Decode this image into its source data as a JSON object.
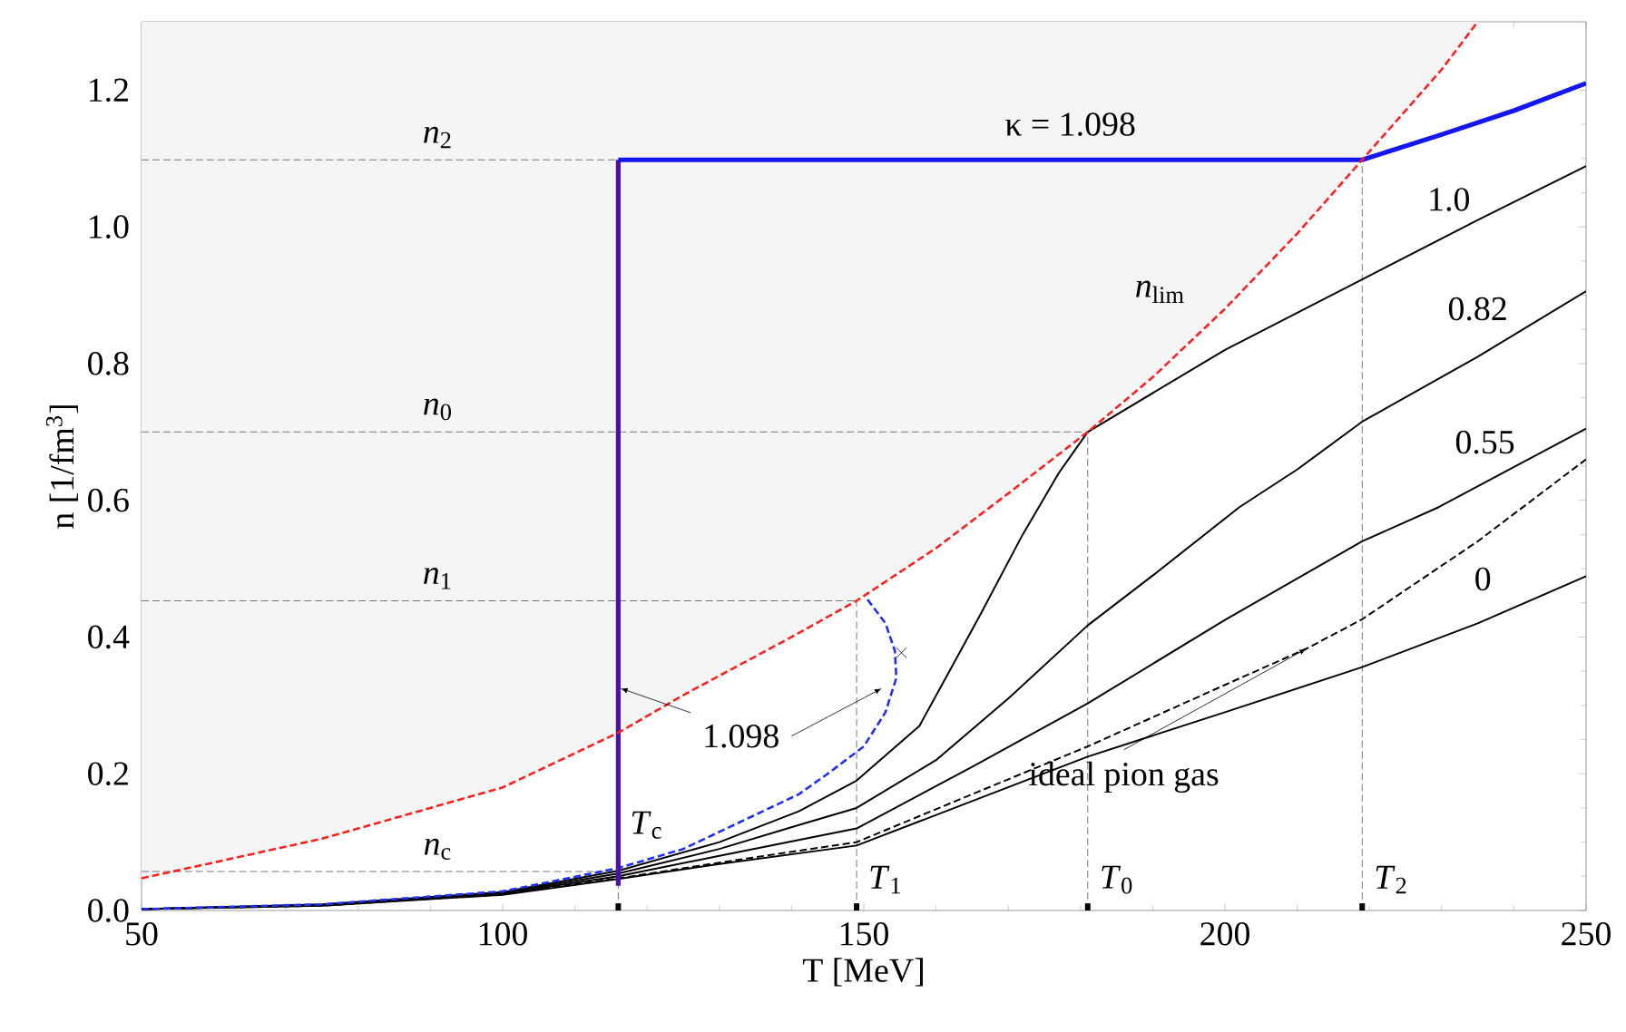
{
  "chart_data": {
    "type": "line",
    "xlabel": "T  [MeV]",
    "ylabel": "n  [1/fm$^{3}$]",
    "xlim": [
      50,
      250
    ],
    "ylim": [
      0,
      1.3
    ],
    "xticks": [
      50,
      100,
      150,
      200,
      250
    ],
    "yticks": [
      {
        "value": 0,
        "label": "0.0"
      },
      {
        "value": 0.2,
        "label": "0.2"
      },
      {
        "value": 0.4,
        "label": "0.4"
      },
      {
        "value": 0.6,
        "label": "0.6"
      },
      {
        "value": 0.8,
        "label": "0.8"
      },
      {
        "value": 1.0,
        "label": "1.0"
      },
      {
        "value": 1.2,
        "label": "1.2"
      }
    ],
    "series": [
      {
        "name": "*n*$_{lim}$",
        "color": "#ff2020",
        "line_style": "dashed",
        "x": [
          50,
          75,
          100,
          116,
          125,
          140,
          149,
          160,
          170,
          181,
          190,
          200,
          210,
          219,
          230,
          235
        ],
        "values": [
          0.047,
          0.105,
          0.18,
          0.26,
          0.315,
          0.4,
          0.453,
          0.53,
          0.61,
          0.7,
          0.78,
          0.88,
          0.99,
          1.098,
          1.23,
          1.3
        ],
        "lower": [
          0.047,
          0.105,
          0.18,
          0.26,
          0.315,
          0.4,
          0.453,
          0.53,
          0.61,
          0.7,
          0.78,
          0.88,
          0.99,
          1.098,
          1.23,
          1.3
        ],
        "upper": [
          1.3,
          1.3,
          1.3,
          1.3,
          1.3,
          1.3,
          1.3,
          1.3,
          1.3,
          1.3,
          1.3,
          1.3,
          1.3,
          1.3,
          1.3,
          1.3
        ]
      },
      {
        "name": "κ = 1.098",
        "color": "#1515f0",
        "line_style": "solid",
        "x": [
          116,
          219,
          230,
          240,
          250
        ],
        "values": [
          1.098,
          1.098,
          1.135,
          1.17,
          1.21
        ]
      },
      {
        "color": "#4b10a8",
        "line_style": "solid",
        "x": [
          116,
          116
        ],
        "values": [
          0.036,
          1.098
        ]
      },
      {
        "color": "#2030f0",
        "line_style": "dashed",
        "x": [
          50,
          75,
          100,
          116,
          125,
          135,
          141,
          145,
          150,
          153,
          154.5,
          154.3,
          153,
          150.5
        ],
        "values": [
          0.002,
          0.009,
          0.028,
          0.062,
          0.09,
          0.14,
          0.17,
          0.2,
          0.24,
          0.29,
          0.34,
          0.38,
          0.42,
          0.455
        ]
      },
      {
        "name": "1.0",
        "color": "#000000",
        "line_style": "solid",
        "x": [
          50,
          75,
          100,
          116,
          130,
          141,
          149,
          157.7,
          166,
          172,
          177,
          181,
          200,
          219,
          235,
          250
        ],
        "values": [
          0.002,
          0.009,
          0.027,
          0.058,
          0.1,
          0.145,
          0.19,
          0.27,
          0.43,
          0.55,
          0.64,
          0.7,
          0.82,
          0.923,
          1.01,
          1.089
        ]
      },
      {
        "name": "0.82",
        "color": "#000000",
        "line_style": "solid",
        "x": [
          50,
          75,
          100,
          116,
          130,
          141,
          149,
          160,
          170,
          181,
          190,
          202,
          210,
          219,
          235,
          250
        ],
        "values": [
          0.002,
          0.008,
          0.026,
          0.054,
          0.09,
          0.125,
          0.15,
          0.22,
          0.31,
          0.417,
          0.49,
          0.59,
          0.645,
          0.715,
          0.81,
          0.906
        ]
      },
      {
        "name": "0.55",
        "color": "#000000",
        "line_style": "solid",
        "x": [
          50,
          75,
          100,
          116,
          130,
          149,
          165,
          181,
          200,
          219,
          229.6,
          250
        ],
        "values": [
          0.002,
          0.008,
          0.025,
          0.05,
          0.08,
          0.12,
          0.21,
          0.303,
          0.425,
          0.54,
          0.59,
          0.705
        ]
      },
      {
        "name": "ideal pion gas",
        "color": "#000000",
        "line_style": "dashed",
        "x": [
          50,
          75,
          100,
          116,
          130,
          149,
          165,
          181,
          200,
          211.3,
          219,
          235,
          250
        ],
        "values": [
          0.002,
          0.007,
          0.024,
          0.047,
          0.07,
          0.1,
          0.17,
          0.24,
          0.33,
          0.383,
          0.426,
          0.54,
          0.66
        ]
      },
      {
        "name": "0",
        "color": "#000000",
        "line_style": "solid",
        "x": [
          50,
          75,
          100,
          116,
          130,
          149,
          165,
          181,
          200,
          219,
          235,
          250
        ],
        "values": [
          0.002,
          0.007,
          0.023,
          0.046,
          0.068,
          0.095,
          0.16,
          0.225,
          0.29,
          0.356,
          0.42,
          0.489
        ]
      },
      {
        "type": "scatter",
        "marker": "cross",
        "color": "#000000",
        "x": [
          155.2
        ],
        "values": [
          0.377
        ]
      }
    ],
    "ref_lines": [
      {
        "axis": "y",
        "value": 0.057,
        "label": "*n*$_{c}$",
        "color": "#555555",
        "line_style": "dashed"
      },
      {
        "axis": "y",
        "value": 0.453,
        "label": "*n*$_{1}$",
        "color": "#555555",
        "line_style": "dashed"
      },
      {
        "axis": "y",
        "value": 0.7,
        "label": "*n*$_{0}$",
        "color": "#555555",
        "line_style": "dashed"
      },
      {
        "axis": "y",
        "value": 1.098,
        "label": "*n*$_{2}$",
        "color": "#555555",
        "line_style": "dashed"
      },
      {
        "axis": "x",
        "value": 116,
        "label": "*T*$_{c}$",
        "color": "#555555",
        "line_style": "dashed"
      },
      {
        "axis": "x",
        "value": 149,
        "label": "*T*$_{1}$",
        "color": "#555555",
        "line_style": "dashed"
      },
      {
        "axis": "x",
        "value": 181,
        "label": "*T*$_{0}$",
        "color": "#555555",
        "line_style": "dashed"
      },
      {
        "axis": "x",
        "value": 219,
        "label": "*T*$_{2}$",
        "color": "#555555",
        "line_style": "dashed"
      }
    ],
    "annotations": [
      {
        "text": "1.098",
        "x": 116,
        "y": 0.325
      }
    ]
  }
}
